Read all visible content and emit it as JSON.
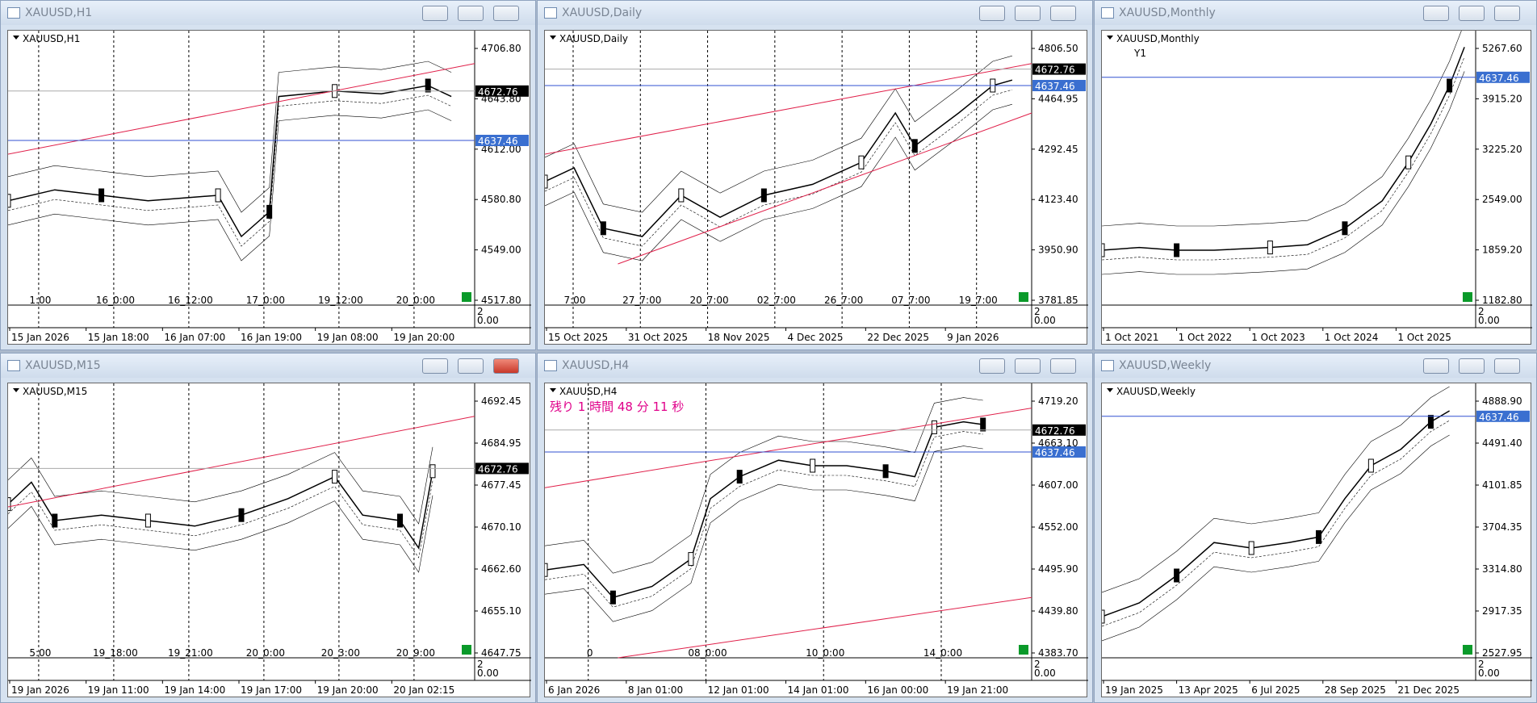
{
  "windows": [
    {
      "title": "XAUUSD,H1",
      "symbol": "XAUUSD,H1",
      "prices": [
        "4706.80",
        "4643.80",
        "4612.00",
        "4580.80",
        "4549.00",
        "4517.80"
      ],
      "tags": [
        "4672.76",
        "4637.46"
      ],
      "separators": [
        "1:00",
        "16_0:00",
        "16_12:00",
        "17_0:00",
        "19_12:00",
        "20_0:00"
      ],
      "times": [
        "15 Jan 2026",
        "15 Jan 18:00",
        "16 Jan 07:00",
        "16 Jan 19:00",
        "19 Jan 08:00",
        "19 Jan 20:00"
      ],
      "indicator": [
        "2",
        "0.00"
      ]
    },
    {
      "title": "XAUUSD,Daily",
      "symbol": "XAUUSD,Daily",
      "prices": [
        "4806.50",
        "4464.95",
        "4292.45",
        "4123.40",
        "3950.90",
        "3781.85"
      ],
      "tags": [
        "4672.76",
        "4637.46"
      ],
      "separators": [
        "7:00",
        "27_7:00",
        "20_7:00",
        "02_7:00",
        "26_7:00",
        "07_7:00",
        "19_7:00"
      ],
      "times": [
        "15 Oct 2025",
        "31 Oct 2025",
        "18 Nov 2025",
        "4 Dec 2025",
        "22 Dec 2025",
        "9 Jan 2026"
      ],
      "indicator": [
        "2",
        "0.00"
      ]
    },
    {
      "title": "XAUUSD,Monthly",
      "symbol": "XAUUSD,Monthly",
      "badge": "Y1",
      "prices": [
        "5267.60",
        "3915.20",
        "3225.20",
        "2549.00",
        "1859.20",
        "1182.80"
      ],
      "tags": [
        "4637.46"
      ],
      "separators": [],
      "times": [
        "1 Oct 2021",
        "1 Oct 2022",
        "1 Oct 2023",
        "1 Oct 2024",
        "1 Oct 2025"
      ],
      "indicator": [
        "2",
        "0.00"
      ]
    },
    {
      "title": "XAUUSD,M15",
      "symbol": "XAUUSD,M15",
      "prices": [
        "4692.45",
        "4684.95",
        "4677.45",
        "4670.10",
        "4662.60",
        "4655.10",
        "4647.75"
      ],
      "tags": [
        "4672.76"
      ],
      "separators": [
        "5:00",
        "19_18:00",
        "19_21:00",
        "20_0:00",
        "20_3:00",
        "20_9:00"
      ],
      "times": [
        "19 Jan 2026",
        "19 Jan 11:00",
        "19 Jan 14:00",
        "19 Jan 17:00",
        "19 Jan 20:00",
        "20 Jan 02:15"
      ],
      "indicator": [
        "2",
        "0.00"
      ]
    },
    {
      "title": "XAUUSD,H4",
      "symbol": "XAUUSD,H4",
      "annotation": "残り 1 時間 48 分 11 秒",
      "prices": [
        "4719.20",
        "4663.10",
        "4607.00",
        "4552.00",
        "4495.90",
        "4439.80",
        "4383.70"
      ],
      "tags": [
        "4672.76",
        "4637.46"
      ],
      "separators": [
        "0",
        "08_0:00",
        "10_0:00",
        "14_0:00"
      ],
      "times": [
        "6 Jan 2026",
        "8 Jan 01:00",
        "12 Jan 01:00",
        "14 Jan 01:00",
        "16 Jan 00:00",
        "19 Jan 21:00"
      ],
      "indicator": [
        "2",
        "0.00"
      ]
    },
    {
      "title": "XAUUSD,Weekly",
      "symbol": "XAUUSD,Weekly",
      "prices": [
        "4888.90",
        "4491.40",
        "4101.85",
        "3704.35",
        "3314.80",
        "2917.35",
        "2527.95"
      ],
      "tags": [
        "4637.46"
      ],
      "separators": [],
      "times": [
        "19 Jan 2025",
        "13 Apr 2025",
        "6 Jul 2025",
        "28 Sep 2025",
        "21 Dec 2025"
      ],
      "indicator": [
        "2",
        "0.00"
      ]
    }
  ]
}
